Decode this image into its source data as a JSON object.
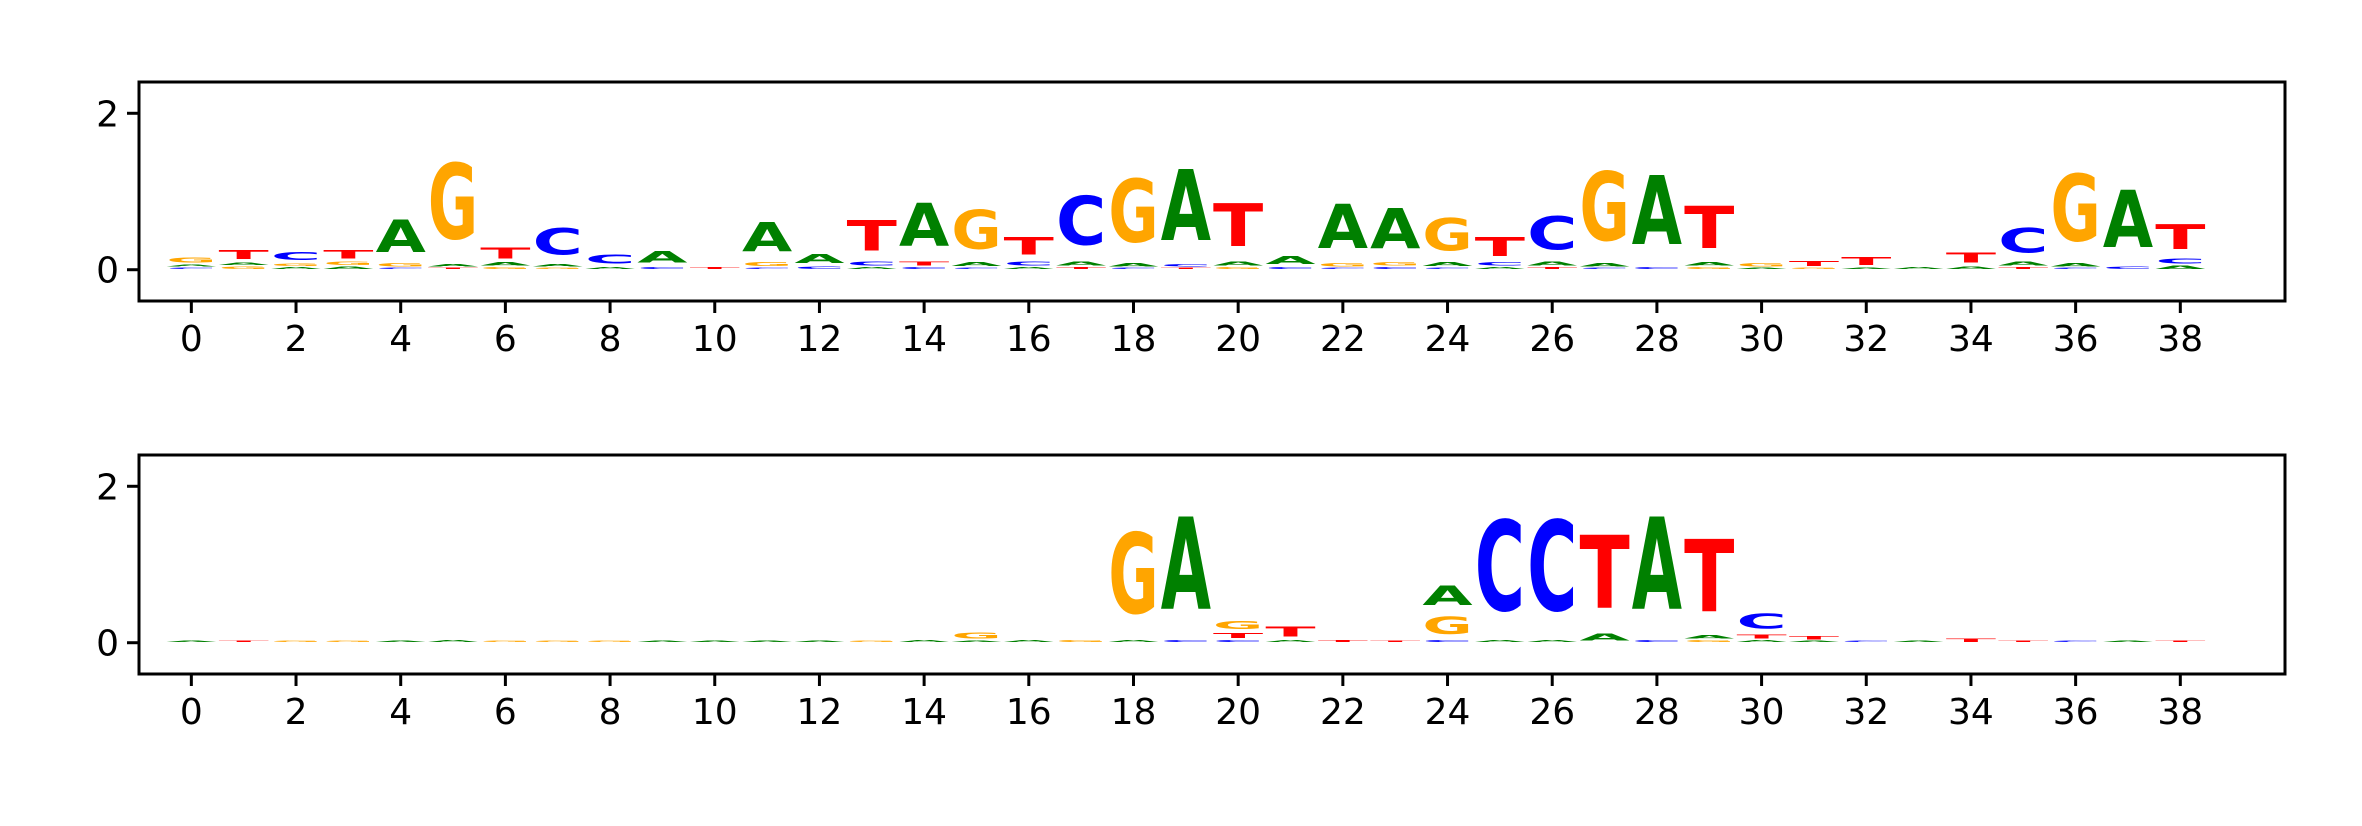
{
  "colors": {
    "A": "#008000",
    "C": "#0000ff",
    "G": "#ffa500",
    "T": "#ff0000"
  },
  "chart_data": [
    {
      "type": "sequence-logo",
      "title": "",
      "xlabel": "",
      "ylabel": "",
      "xlim": [
        -1,
        40
      ],
      "ylim": [
        -0.4,
        2.4
      ],
      "xticks": [
        "0",
        "2",
        "4",
        "6",
        "8",
        "10",
        "12",
        "14",
        "16",
        "18",
        "20",
        "22",
        "24",
        "26",
        "28",
        "30",
        "32",
        "34",
        "36",
        "38"
      ],
      "yticks": [
        "0",
        "2"
      ],
      "positions": [
        {
          "x": 0,
          "letters": {
            "G": 0.1,
            "A": 0.04,
            "C": 0.03
          }
        },
        {
          "x": 1,
          "letters": {
            "T": 0.18,
            "G": 0.05,
            "A": 0.05
          }
        },
        {
          "x": 2,
          "letters": {
            "C": 0.16,
            "G": 0.05,
            "A": 0.04
          }
        },
        {
          "x": 3,
          "letters": {
            "T": 0.17,
            "G": 0.06,
            "A": 0.05
          }
        },
        {
          "x": 4,
          "letters": {
            "A": 0.66,
            "G": 0.06,
            "C": 0.03
          }
        },
        {
          "x": 5,
          "letters": {
            "G": 1.55,
            "A": 0.05,
            "T": 0.03
          }
        },
        {
          "x": 6,
          "letters": {
            "T": 0.22,
            "A": 0.06,
            "G": 0.04
          }
        },
        {
          "x": 7,
          "letters": {
            "C": 0.55,
            "A": 0.05,
            "G": 0.03
          }
        },
        {
          "x": 8,
          "letters": {
            "C": 0.18,
            "A": 0.04
          }
        },
        {
          "x": 9,
          "letters": {
            "A": 0.24,
            "C": 0.04
          }
        },
        {
          "x": 10,
          "letters": {
            "T": 0.04
          }
        },
        {
          "x": 11,
          "letters": {
            "A": 0.6,
            "G": 0.08,
            "C": 0.03
          }
        },
        {
          "x": 12,
          "letters": {
            "A": 0.18,
            "C": 0.05
          }
        },
        {
          "x": 13,
          "letters": {
            "T": 0.62,
            "C": 0.08,
            "A": 0.04
          }
        },
        {
          "x": 14,
          "letters": {
            "A": 0.88,
            "T": 0.08,
            "C": 0.04
          }
        },
        {
          "x": 15,
          "letters": {
            "G": 0.8,
            "A": 0.08,
            "C": 0.03
          }
        },
        {
          "x": 16,
          "letters": {
            "T": 0.36,
            "C": 0.08,
            "A": 0.04
          }
        },
        {
          "x": 17,
          "letters": {
            "C": 1.0,
            "A": 0.08,
            "T": 0.04
          }
        },
        {
          "x": 18,
          "letters": {
            "G": 1.3,
            "A": 0.06,
            "C": 0.03
          }
        },
        {
          "x": 19,
          "letters": {
            "A": 1.45,
            "C": 0.05,
            "T": 0.03
          }
        },
        {
          "x": 20,
          "letters": {
            "T": 0.88,
            "A": 0.08,
            "G": 0.04
          }
        },
        {
          "x": 21,
          "letters": {
            "A": 0.16,
            "C": 0.04
          }
        },
        {
          "x": 22,
          "letters": {
            "A": 0.9,
            "G": 0.06,
            "C": 0.03
          }
        },
        {
          "x": 23,
          "letters": {
            "A": 0.82,
            "G": 0.06,
            "C": 0.04
          }
        },
        {
          "x": 24,
          "letters": {
            "G": 0.66,
            "A": 0.08,
            "C": 0.03
          }
        },
        {
          "x": 25,
          "letters": {
            "T": 0.38,
            "C": 0.06,
            "A": 0.04
          }
        },
        {
          "x": 26,
          "letters": {
            "C": 0.68,
            "A": 0.08,
            "T": 0.04
          }
        },
        {
          "x": 27,
          "letters": {
            "G": 1.42,
            "A": 0.06,
            "C": 0.03
          }
        },
        {
          "x": 28,
          "letters": {
            "A": 1.42,
            "C": 0.04
          }
        },
        {
          "x": 29,
          "letters": {
            "T": 0.86,
            "A": 0.06,
            "G": 0.04
          }
        },
        {
          "x": 30,
          "letters": {
            "G": 0.06,
            "A": 0.03
          }
        },
        {
          "x": 31,
          "letters": {
            "T": 0.1,
            "G": 0.03
          }
        },
        {
          "x": 32,
          "letters": {
            "T": 0.16,
            "A": 0.03
          }
        },
        {
          "x": 33,
          "letters": {
            "A": 0.04
          }
        },
        {
          "x": 34,
          "letters": {
            "T": 0.2,
            "A": 0.05
          }
        },
        {
          "x": 35,
          "letters": {
            "C": 0.5,
            "A": 0.08,
            "T": 0.04
          }
        },
        {
          "x": 36,
          "letters": {
            "G": 1.38,
            "A": 0.06,
            "C": 0.03
          }
        },
        {
          "x": 37,
          "letters": {
            "A": 1.18,
            "C": 0.05
          }
        },
        {
          "x": 38,
          "letters": {
            "T": 0.5,
            "C": 0.1,
            "A": 0.06
          }
        }
      ]
    },
    {
      "type": "sequence-logo",
      "title": "",
      "xlabel": "",
      "ylabel": "",
      "xlim": [
        -1,
        40
      ],
      "ylim": [
        -0.4,
        2.4
      ],
      "xticks": [
        "0",
        "2",
        "4",
        "6",
        "8",
        "10",
        "12",
        "14",
        "16",
        "18",
        "20",
        "22",
        "24",
        "26",
        "28",
        "30",
        "32",
        "34",
        "36",
        "38"
      ],
      "yticks": [
        "0",
        "2"
      ],
      "positions": [
        {
          "x": 0,
          "letters": {
            "A": 0.03
          }
        },
        {
          "x": 1,
          "letters": {
            "T": 0.03
          }
        },
        {
          "x": 2,
          "letters": {
            "G": 0.03
          }
        },
        {
          "x": 3,
          "letters": {
            "G": 0.03
          }
        },
        {
          "x": 4,
          "letters": {
            "A": 0.03
          }
        },
        {
          "x": 5,
          "letters": {
            "A": 0.04
          }
        },
        {
          "x": 6,
          "letters": {
            "G": 0.03
          }
        },
        {
          "x": 7,
          "letters": {
            "G": 0.03
          }
        },
        {
          "x": 8,
          "letters": {
            "G": 0.03
          }
        },
        {
          "x": 9,
          "letters": {
            "A": 0.03
          }
        },
        {
          "x": 10,
          "letters": {
            "A": 0.03
          }
        },
        {
          "x": 11,
          "letters": {
            "A": 0.03
          }
        },
        {
          "x": 12,
          "letters": {
            "A": 0.03
          }
        },
        {
          "x": 13,
          "letters": {
            "G": 0.03
          }
        },
        {
          "x": 14,
          "letters": {
            "A": 0.04
          }
        },
        {
          "x": 15,
          "letters": {
            "G": 0.12,
            "A": 0.03
          }
        },
        {
          "x": 16,
          "letters": {
            "A": 0.04
          }
        },
        {
          "x": 17,
          "letters": {
            "G": 0.04
          }
        },
        {
          "x": 18,
          "letters": {
            "G": 1.65,
            "A": 0.04
          }
        },
        {
          "x": 19,
          "letters": {
            "A": 1.9,
            "C": 0.04
          }
        },
        {
          "x": 20,
          "letters": {
            "G": 0.16,
            "T": 0.1,
            "C": 0.04
          }
        },
        {
          "x": 21,
          "letters": {
            "T": 0.2,
            "A": 0.04
          }
        },
        {
          "x": 22,
          "letters": {
            "T": 0.04
          }
        },
        {
          "x": 23,
          "letters": {
            "T": 0.03
          }
        },
        {
          "x": 24,
          "letters": {
            "A": 0.4,
            "G": 0.36,
            "C": 0.04
          }
        },
        {
          "x": 25,
          "letters": {
            "C": 1.85,
            "A": 0.04
          }
        },
        {
          "x": 26,
          "letters": {
            "C": 1.85,
            "A": 0.04
          }
        },
        {
          "x": 27,
          "letters": {
            "T": 1.5,
            "A": 0.14
          }
        },
        {
          "x": 28,
          "letters": {
            "A": 1.9,
            "C": 0.04
          }
        },
        {
          "x": 29,
          "letters": {
            "T": 1.48,
            "A": 0.06,
            "G": 0.04
          }
        },
        {
          "x": 30,
          "letters": {
            "C": 0.3,
            "T": 0.08,
            "A": 0.04
          }
        },
        {
          "x": 31,
          "letters": {
            "T": 0.06,
            "A": 0.03
          }
        },
        {
          "x": 32,
          "letters": {
            "C": 0.03
          }
        },
        {
          "x": 33,
          "letters": {
            "A": 0.03
          }
        },
        {
          "x": 34,
          "letters": {
            "T": 0.06
          }
        },
        {
          "x": 35,
          "letters": {
            "T": 0.03
          }
        },
        {
          "x": 36,
          "letters": {
            "C": 0.03
          }
        },
        {
          "x": 37,
          "letters": {
            "A": 0.03
          }
        },
        {
          "x": 38,
          "letters": {
            "T": 0.03
          }
        }
      ]
    }
  ]
}
